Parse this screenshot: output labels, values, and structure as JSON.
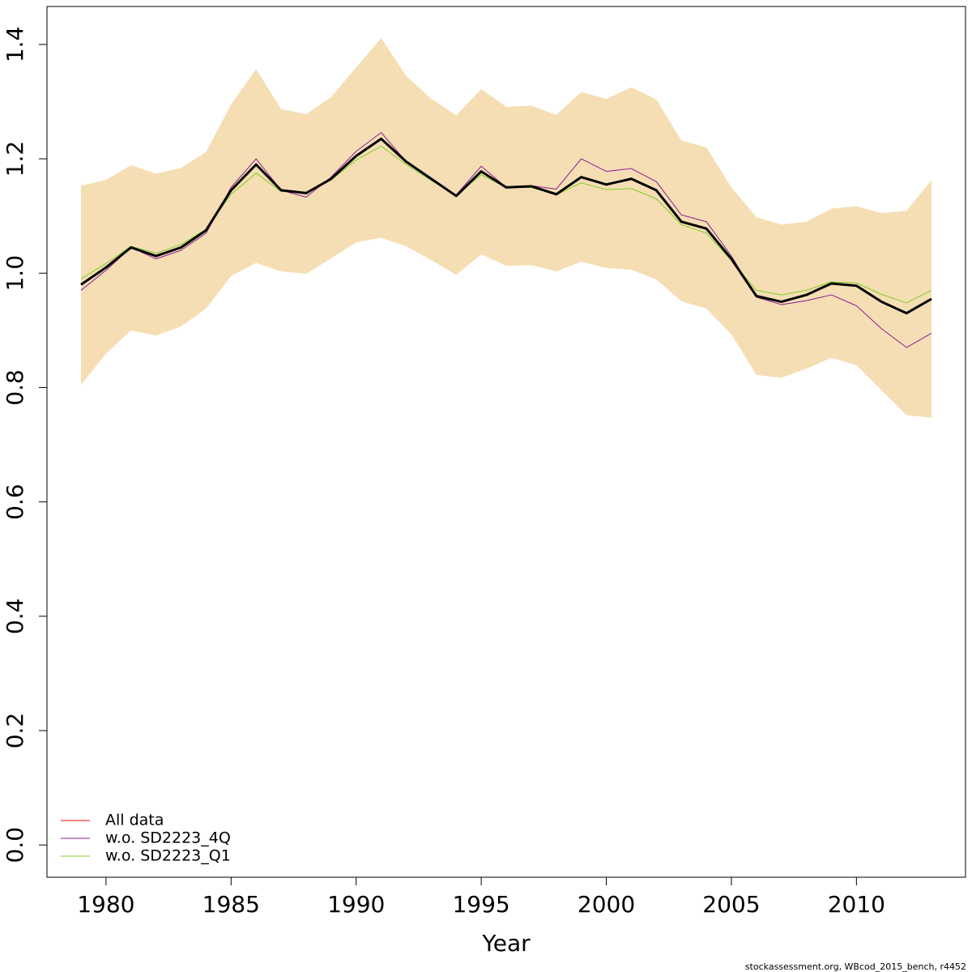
{
  "chart_data": {
    "type": "line",
    "xlabel": "Year",
    "footnote": "stockassessment.org, WBcod_2015_bench, r4452",
    "x": [
      1979,
      1980,
      1981,
      1982,
      1983,
      1984,
      1985,
      1986,
      1987,
      1988,
      1989,
      1990,
      1991,
      1992,
      1993,
      1994,
      1995,
      1996,
      1997,
      1998,
      1999,
      2000,
      2001,
      2002,
      2003,
      2004,
      2005,
      2006,
      2007,
      2008,
      2009,
      2010,
      2011,
      2012,
      2013
    ],
    "band": {
      "color": "#f5deb3",
      "lower": [
        0.805,
        0.859,
        0.9,
        0.891,
        0.907,
        0.938,
        0.995,
        1.018,
        1.003,
        0.999,
        1.026,
        1.054,
        1.062,
        1.047,
        1.023,
        0.997,
        1.033,
        1.013,
        1.014,
        1.003,
        1.02,
        1.009,
        1.006,
        0.989,
        0.951,
        0.938,
        0.893,
        0.822,
        0.817,
        0.833,
        0.852,
        0.839,
        0.795,
        0.752,
        0.747
      ],
      "upper": [
        1.153,
        1.163,
        1.189,
        1.174,
        1.184,
        1.212,
        1.295,
        1.357,
        1.287,
        1.278,
        1.308,
        1.36,
        1.411,
        1.345,
        1.305,
        1.276,
        1.322,
        1.291,
        1.293,
        1.277,
        1.317,
        1.305,
        1.325,
        1.304,
        1.232,
        1.22,
        1.15,
        1.098,
        1.085,
        1.09,
        1.113,
        1.117,
        1.105,
        1.109,
        1.163
      ]
    },
    "series": [
      {
        "name": "All data",
        "color": "#ff0000",
        "values": [
          0.98,
          1.01,
          1.045,
          1.03,
          1.045,
          1.075,
          1.145,
          1.19,
          1.145,
          1.14,
          1.165,
          1.205,
          1.235,
          1.195,
          1.165,
          1.135,
          1.178,
          1.15,
          1.152,
          1.138,
          1.168,
          1.155,
          1.165,
          1.145,
          1.09,
          1.078,
          1.025,
          0.96,
          0.95,
          0.962,
          0.982,
          0.978,
          0.95,
          0.93,
          0.955
        ]
      },
      {
        "name": "w.o. SD2223_4Q",
        "color": "#8b1a9b",
        "values": [
          0.97,
          1.005,
          1.045,
          1.025,
          1.04,
          1.07,
          1.15,
          1.2,
          1.145,
          1.133,
          1.168,
          1.213,
          1.246,
          1.195,
          1.165,
          1.137,
          1.187,
          1.15,
          1.153,
          1.147,
          1.2,
          1.178,
          1.183,
          1.16,
          1.102,
          1.09,
          1.03,
          0.958,
          0.945,
          0.952,
          0.962,
          0.943,
          0.903,
          0.87,
          0.895
        ]
      },
      {
        "name": "w.o. SD2223_Q1",
        "color": "#7fcd2a",
        "values": [
          0.99,
          1.017,
          1.047,
          1.035,
          1.05,
          1.077,
          1.138,
          1.175,
          1.143,
          1.14,
          1.163,
          1.198,
          1.222,
          1.19,
          1.162,
          1.137,
          1.172,
          1.15,
          1.15,
          1.137,
          1.158,
          1.146,
          1.148,
          1.13,
          1.085,
          1.07,
          1.022,
          0.97,
          0.962,
          0.97,
          0.985,
          0.983,
          0.963,
          0.948,
          0.97
        ]
      }
    ],
    "highlight_series": 0,
    "highlight_color": "#000000",
    "xlim": [
      1977.64,
      2014.36
    ],
    "xticks": [
      1980,
      1985,
      1990,
      1995,
      2000,
      2005,
      2010
    ],
    "ylim": [
      -0.0564,
      1.4664
    ],
    "yticks": [
      {
        "value": 0,
        "label": "0.0"
      },
      {
        "value": 0.2,
        "label": "0.2"
      },
      {
        "value": 0.4,
        "label": "0.4"
      },
      {
        "value": 0.6,
        "label": "0.6"
      },
      {
        "value": 0.8,
        "label": "0.8"
      },
      {
        "value": 1,
        "label": "1.0"
      },
      {
        "value": 1.2,
        "label": "1.2"
      },
      {
        "value": 1.4,
        "label": "1.4"
      }
    ],
    "legend": "bottom-left"
  }
}
